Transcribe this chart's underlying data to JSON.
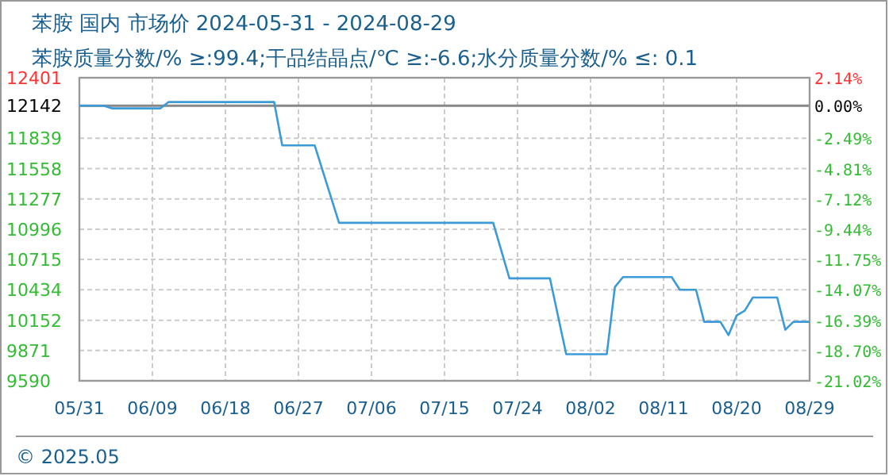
{
  "chart_data": {
    "type": "line",
    "title": "苯胺 国内 市场价 2024-05-31 - 2024-08-29",
    "subtitle": "苯胺质量分数/% ≥:99.4;干品结晶点/℃  ≥:-6.6;水分质量分数/%  ≤: 0.1",
    "annotations": [
      "© 2025.05"
    ],
    "series": [
      {
        "color": "#3d9ad8",
        "x": [
          "2024-05-31",
          "2024-06-03",
          "2024-06-04",
          "2024-06-10",
          "2024-06-11",
          "2024-06-24",
          "2024-06-25",
          "2024-06-29",
          "2024-07-02",
          "2024-07-21",
          "2024-07-23",
          "2024-07-28",
          "2024-07-30",
          "2024-08-04",
          "2024-08-05",
          "2024-08-06",
          "2024-08-12",
          "2024-08-13",
          "2024-08-15",
          "2024-08-16",
          "2024-08-18",
          "2024-08-19",
          "2024-08-20",
          "2024-08-21",
          "2024-08-22",
          "2024-08-25",
          "2024-08-26",
          "2024-08-27",
          "2024-08-29"
        ],
        "values": [
          12142,
          12142,
          12117,
          12117,
          12176,
          12176,
          11774,
          11774,
          11055,
          11055,
          10540,
          10540,
          9837,
          9837,
          10459,
          10552,
          10552,
          10434,
          10434,
          10137,
          10137,
          10014,
          10196,
          10240,
          10363,
          10363,
          10064,
          10137,
          10137
        ]
      }
    ],
    "xlim": [
      "2024-05-31",
      "2024-08-29"
    ],
    "xticks": [
      {
        "value": "2024-05-31",
        "label": "05/31"
      },
      {
        "value": "2024-06-09",
        "label": "06/09"
      },
      {
        "value": "2024-06-18",
        "label": "06/18"
      },
      {
        "value": "2024-06-27",
        "label": "06/27"
      },
      {
        "value": "2024-07-06",
        "label": "07/06"
      },
      {
        "value": "2024-07-15",
        "label": "07/15"
      },
      {
        "value": "2024-07-24",
        "label": "07/24"
      },
      {
        "value": "2024-08-02",
        "label": "08/02"
      },
      {
        "value": "2024-08-11",
        "label": "08/11"
      },
      {
        "value": "2024-08-20",
        "label": "08/20"
      },
      {
        "value": "2024-08-29",
        "label": "08/29"
      }
    ],
    "ylim": [
      9590,
      12401
    ],
    "yticks": [
      9590,
      9871,
      10152,
      10434,
      10715,
      10996,
      11277,
      11558,
      11839,
      12142,
      12401
    ],
    "y2lim": [
      -21.02,
      2.14
    ],
    "y2ticks": [
      {
        "value": -21.02,
        "label": "-21.02%"
      },
      {
        "value": -18.7,
        "label": "-18.70%"
      },
      {
        "value": -16.39,
        "label": "-16.39%"
      },
      {
        "value": -14.07,
        "label": "-14.07%"
      },
      {
        "value": -11.75,
        "label": "-11.75%"
      },
      {
        "value": -9.44,
        "label": "-9.44%"
      },
      {
        "value": -7.12,
        "label": "-7.12%"
      },
      {
        "value": -4.81,
        "label": "-4.81%"
      },
      {
        "value": -2.49,
        "label": "-2.49%"
      },
      {
        "value": 0,
        "label": "0.00%"
      },
      {
        "value": 2.14,
        "label": "2.14%"
      }
    ],
    "ref_lines": [
      {
        "axis": "y",
        "value": 12142,
        "color": "#888888"
      }
    ],
    "grid": true,
    "marker": "none",
    "line_style": "solid"
  }
}
